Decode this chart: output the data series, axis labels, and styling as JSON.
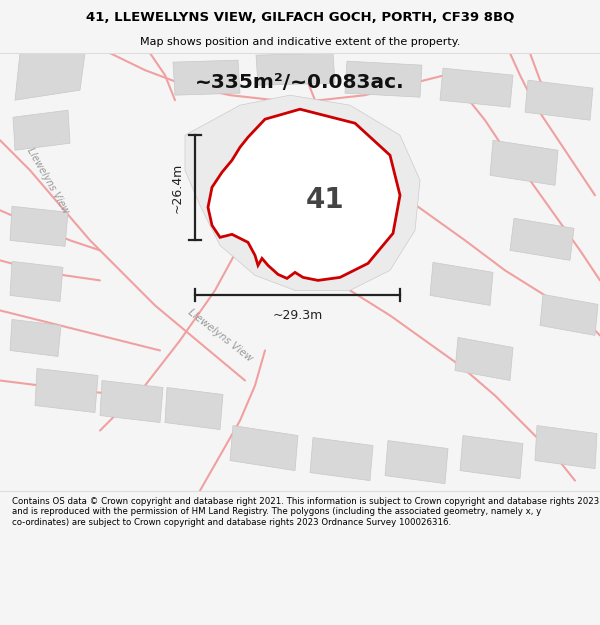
{
  "title_line1": "41, LLEWELLYNS VIEW, GILFACH GOCH, PORTH, CF39 8BQ",
  "title_line2": "Map shows position and indicative extent of the property.",
  "area_text": "~335m²/~0.083ac.",
  "plot_number": "41",
  "dim_vertical": "~26.4m",
  "dim_horizontal": "~29.3m",
  "footer_text": "Contains OS data © Crown copyright and database right 2021. This information is subject to Crown copyright and database rights 2023 and is reproduced with the permission of HM Land Registry. The polygons (including the associated geometry, namely x, y co-ordinates) are subject to Crown copyright and database rights 2023 Ordnance Survey 100026316.",
  "bg_color": "#f5f5f5",
  "map_bg": "#ffffff",
  "road_color": "#f0a0a0",
  "building_color": "#d8d8d8",
  "building_edge": "#c8c8c8",
  "plot_outline": "#cc0000",
  "plot_fill": "#ffffff",
  "dim_color": "#222222",
  "title_color": "#000000",
  "footer_color": "#000000",
  "street_label_diag": "Llewelyns View",
  "street_label_left": "Llewelyns View"
}
